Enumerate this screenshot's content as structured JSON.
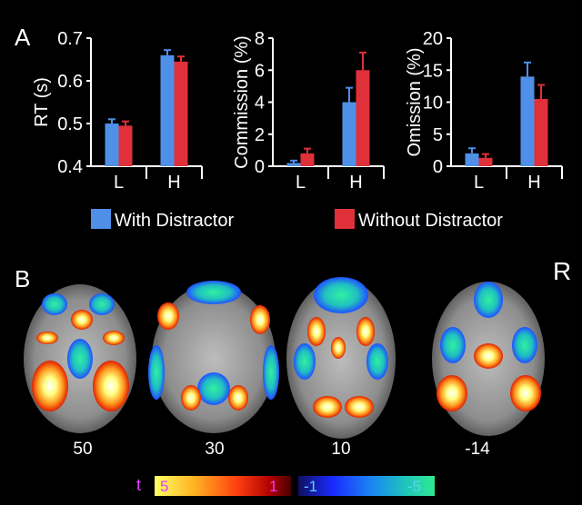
{
  "panel_labels": {
    "a": "A",
    "b": "B",
    "orientation": "R"
  },
  "colors": {
    "with": "#4f8fe8",
    "without": "#e0303a",
    "axis": "#ffffff",
    "bg": "#000000"
  },
  "legend": {
    "with_label": "With Distractor",
    "without_label": "Without Distractor"
  },
  "chart_data": [
    {
      "type": "bar",
      "categories": [
        "L",
        "H"
      ],
      "ylabel": "RT (s)",
      "ylim": [
        0.4,
        0.7
      ],
      "yticks": [
        "0.4",
        "0.5",
        "0.6",
        "0.7"
      ],
      "series": [
        {
          "name": "With Distractor",
          "values": [
            0.5,
            0.66
          ],
          "errors": [
            0.01,
            0.012
          ]
        },
        {
          "name": "Without Distractor",
          "values": [
            0.495,
            0.645
          ],
          "errors": [
            0.01,
            0.012
          ]
        }
      ]
    },
    {
      "type": "bar",
      "categories": [
        "L",
        "H"
      ],
      "ylabel": "Commission (%)",
      "ylim": [
        0,
        8
      ],
      "yticks": [
        "0",
        "2",
        "4",
        "6",
        "8"
      ],
      "series": [
        {
          "name": "With Distractor",
          "values": [
            0.2,
            4.0
          ],
          "errors": [
            0.15,
            0.9
          ]
        },
        {
          "name": "Without Distractor",
          "values": [
            0.8,
            6.0
          ],
          "errors": [
            0.3,
            1.1
          ]
        }
      ]
    },
    {
      "type": "bar",
      "categories": [
        "L",
        "H"
      ],
      "ylabel": "Omission (%)",
      "ylim": [
        0,
        20
      ],
      "yticks": [
        "0",
        "5",
        "10",
        "15",
        "20"
      ],
      "series": [
        {
          "name": "With Distractor",
          "values": [
            2.0,
            14.0
          ],
          "errors": [
            0.8,
            2.2
          ]
        },
        {
          "name": "Without Distractor",
          "values": [
            1.3,
            10.5
          ],
          "errors": [
            0.6,
            2.2
          ]
        }
      ]
    }
  ],
  "brain_slices": [
    {
      "label": "50"
    },
    {
      "label": "30"
    },
    {
      "label": "10"
    },
    {
      "label": "-14"
    }
  ],
  "colorbar": {
    "t_label": "t",
    "positive_min": "5",
    "positive_max": "1",
    "negative_min": "-1",
    "negative_max": "-5",
    "positive_colors": [
      "#ffff66",
      "#ffb020",
      "#ff4010",
      "#b00000",
      "#4a0000"
    ],
    "negative_colors": [
      "#101060",
      "#1a2aff",
      "#1a8af0",
      "#20c8b8",
      "#30e890"
    ],
    "positive_label_color": "#e040ff",
    "negative_label_color": "#5ad0ff"
  }
}
